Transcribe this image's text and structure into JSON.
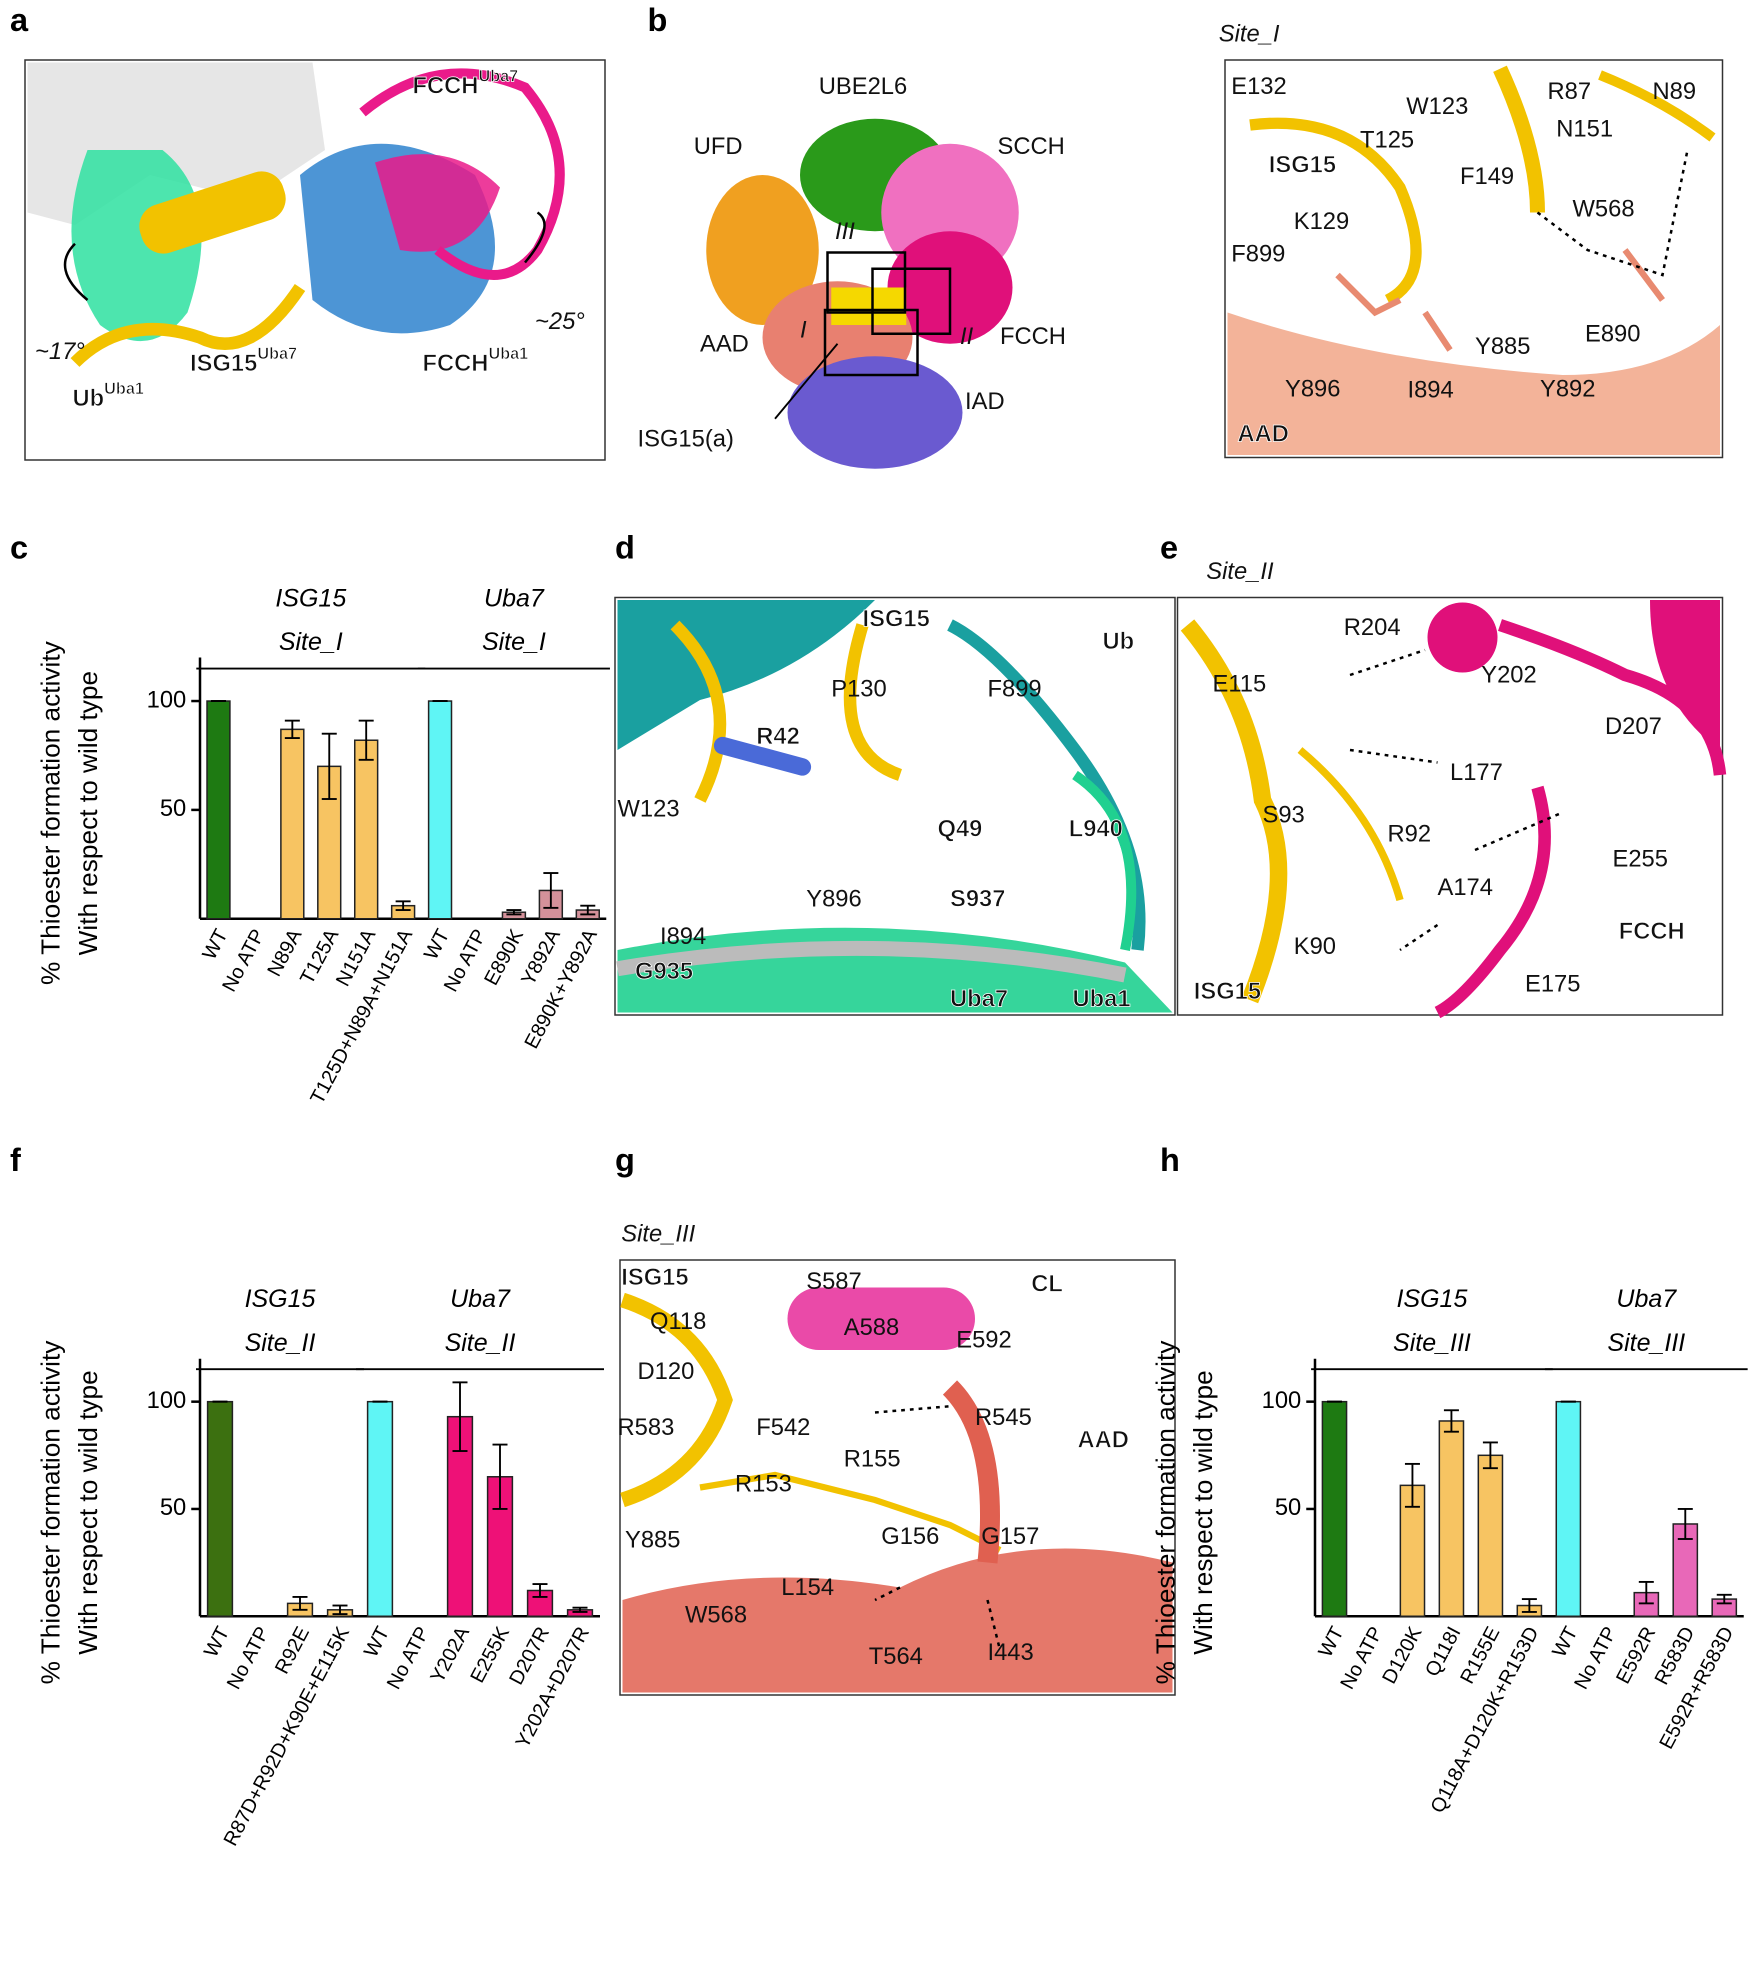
{
  "panels": [
    {
      "letter": "a",
      "labels": [
        {
          "text": "FCCH",
          "sup": "Uba7"
        },
        "~17°",
        "~25°",
        {
          "text": "ISG15",
          "sup": "Uba7"
        },
        {
          "text": "FCCH",
          "sup": "Uba1"
        },
        {
          "text": "Ub",
          "sup": "Uba1"
        }
      ]
    },
    {
      "letter": "b",
      "labels": [
        "UBE2L6",
        "UFD",
        "SCCH",
        "III",
        "I",
        "II",
        "FCCH",
        "AAD",
        "IAD",
        "ISG15(a)"
      ]
    },
    {
      "title": "Site_I",
      "labels": [
        "E132",
        "W123",
        "R87",
        "N89",
        "ISG15",
        "T125",
        "F149",
        "N151",
        "K129",
        "W568",
        "F899",
        "Y885",
        "E890",
        "Y896",
        "I894",
        "Y892",
        "AAD"
      ]
    },
    {
      "letter": "c"
    },
    {
      "letter": "d",
      "labels": [
        "ISG15",
        "Ub",
        "P130",
        "F899",
        "R42",
        "W123",
        "Q49",
        "L940",
        "Y896",
        "S937",
        "I894",
        "G935",
        "Uba7",
        "Uba1"
      ]
    },
    {
      "letter": "e",
      "title": "Site_II",
      "labels": [
        "R204",
        "E115",
        "Y202",
        "D207",
        "L177",
        "S93",
        "R92",
        "E255",
        "A174",
        "FCCH",
        "K90",
        "ISG15",
        "E175"
      ]
    },
    {
      "letter": "f"
    },
    {
      "letter": "g",
      "title": "Site_III",
      "labels": [
        "ISG15",
        "S587",
        "CL",
        "Q118",
        "A588",
        "E592",
        "D120",
        "R583",
        "F542",
        "R545",
        "AAD",
        "R155",
        "R153",
        "G156",
        "G157",
        "Y885",
        "L154",
        "W568",
        "T564",
        "I443"
      ]
    },
    {
      "letter": "h"
    }
  ],
  "chart_data": [
    {
      "type": "bar",
      "ylabel": "% Thioester formation activity",
      "ylabel2": "With respect to wild type",
      "ylim": [
        0,
        120
      ],
      "yticks": [
        50,
        100
      ],
      "groups": [
        {
          "title": "ISG15",
          "subtitle": "Site_I",
          "categories": [
            "WT",
            "No ATP",
            "N89A",
            "T125A",
            "N151A",
            "T125D+N89A+N151A"
          ],
          "values": [
            100,
            0,
            87,
            70,
            82,
            6
          ],
          "errors": [
            0,
            0,
            4,
            15,
            9,
            2
          ],
          "colors": [
            "#1e7a12",
            "#e8a0c0",
            "#f7c462",
            "#f7c462",
            "#f7c462",
            "#f7c462"
          ]
        },
        {
          "title": "Uba7",
          "subtitle": "Site_I",
          "categories": [
            "WT",
            "No ATP",
            "E890K",
            "Y892A",
            "E890K+Y892A"
          ],
          "values": [
            100,
            0,
            3,
            13,
            4
          ],
          "errors": [
            0,
            0,
            1,
            8,
            2
          ],
          "colors": [
            "#5ff5f5",
            "#e8a0c0",
            "#d4919a",
            "#d4919a",
            "#d4919a"
          ]
        }
      ]
    },
    {
      "type": "bar",
      "ylabel": "% Thioester formation activity",
      "ylabel2": "With respect to wild type",
      "ylim": [
        0,
        120
      ],
      "yticks": [
        50,
        100
      ],
      "groups": [
        {
          "title": "ISG15",
          "subtitle": "Site_II",
          "categories": [
            "WT",
            "No ATP",
            "R92E",
            "R87D+R92D+K90E+E115K"
          ],
          "values": [
            100,
            0,
            6,
            3
          ],
          "errors": [
            0,
            0,
            3,
            2
          ],
          "colors": [
            "#3c7010",
            "#e8a0c0",
            "#f7c462",
            "#f7c462"
          ]
        },
        {
          "title": "Uba7",
          "subtitle": "Site_II",
          "categories": [
            "WT",
            "No ATP",
            "Y202A",
            "E255K",
            "D207R",
            "Y202A+D207R"
          ],
          "values": [
            100,
            0,
            93,
            65,
            12,
            3
          ],
          "errors": [
            0,
            0,
            16,
            15,
            3,
            1
          ],
          "colors": [
            "#5ff5f5",
            "#e8a0c0",
            "#ee1177",
            "#ee1177",
            "#ee1177",
            "#ee1177"
          ]
        }
      ]
    },
    {
      "type": "bar",
      "ylabel": "% Thioester formation activity",
      "ylabel2": "With respect to wild type",
      "ylim": [
        0,
        120
      ],
      "yticks": [
        50,
        100
      ],
      "groups": [
        {
          "title": "ISG15",
          "subtitle": "Site_III",
          "categories": [
            "WT",
            "No ATP",
            "D120K",
            "Q118I",
            "R155E",
            "Q118A+D120K+R153D"
          ],
          "values": [
            100,
            0,
            61,
            91,
            75,
            5
          ],
          "errors": [
            0,
            0,
            10,
            5,
            6,
            3
          ],
          "colors": [
            "#1e7a12",
            "#e8a0c0",
            "#f7c462",
            "#f7c462",
            "#f7c462",
            "#f7c462"
          ]
        },
        {
          "title": "Uba7",
          "subtitle": "Site_III",
          "categories": [
            "WT",
            "No ATP",
            "E592R",
            "R583D",
            "E592R+R583D"
          ],
          "values": [
            100,
            0,
            11,
            43,
            8
          ],
          "errors": [
            0,
            0,
            5,
            7,
            2
          ],
          "colors": [
            "#5ff5f5",
            "#e8a0c0",
            "#e868b8",
            "#e868b8",
            "#e868b8"
          ]
        }
      ]
    }
  ]
}
